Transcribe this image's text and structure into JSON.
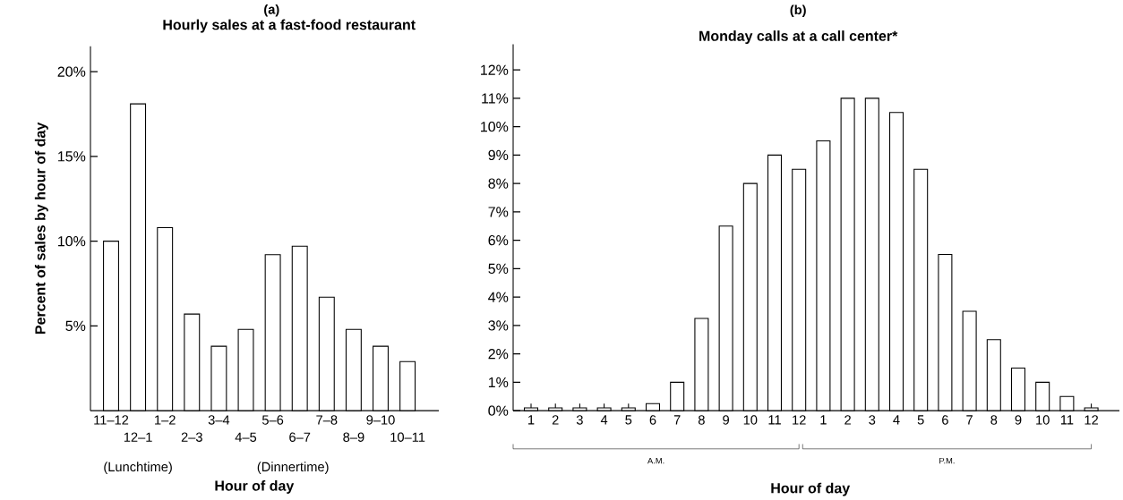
{
  "chart_data": [
    {
      "type": "bar",
      "title": "(a)",
      "subtitle": "Hourly sales at a fast-food restaurant",
      "xlabel": "Hour of day",
      "ylabel": "Percent of sales by hour of day",
      "categories": [
        "11–12",
        "12–1",
        "1–2",
        "2–3",
        "3–4",
        "4–5",
        "5–6",
        "6–7",
        "7–8",
        "8–9",
        "9–10",
        "10–11"
      ],
      "values": [
        10,
        18.1,
        10.8,
        5.7,
        3.8,
        4.8,
        9.2,
        9.7,
        6.7,
        4.8,
        3.8,
        2.9
      ],
      "ylim": [
        0,
        21.5
      ],
      "yticks": [
        {
          "value": 5,
          "label": "5%"
        },
        {
          "value": 10,
          "label": "10%"
        },
        {
          "value": 15,
          "label": "15%"
        },
        {
          "value": 20,
          "label": "20%"
        }
      ],
      "annotations": [
        "(Lunchtime)",
        "(Dinnertime)"
      ]
    },
    {
      "type": "bar",
      "title": "(b)",
      "subtitle": "Monday calls at a call center*",
      "xlabel": "Hour of day",
      "categories": [
        "1",
        "2",
        "3",
        "4",
        "5",
        "6",
        "7",
        "8",
        "9",
        "10",
        "11",
        "12",
        "1",
        "2",
        "3",
        "4",
        "5",
        "6",
        "7",
        "8",
        "9",
        "10",
        "11",
        "12"
      ],
      "values": [
        0.1,
        0.1,
        0.1,
        0.1,
        0.1,
        0.25,
        1,
        3.25,
        6.5,
        8,
        9,
        8.5,
        9.5,
        11,
        11,
        10.5,
        8.5,
        5.5,
        3.5,
        2.5,
        1.5,
        1,
        0.5,
        0.1
      ],
      "ylim": [
        0,
        12.9
      ],
      "yticks": [
        {
          "value": 0,
          "label": "0%"
        },
        {
          "value": 1,
          "label": "1%"
        },
        {
          "value": 2,
          "label": "2%"
        },
        {
          "value": 3,
          "label": "3%"
        },
        {
          "value": 4,
          "label": "4%"
        },
        {
          "value": 5,
          "label": "5%"
        },
        {
          "value": 6,
          "label": "6%"
        },
        {
          "value": 7,
          "label": "7%"
        },
        {
          "value": 8,
          "label": "8%"
        },
        {
          "value": 9,
          "label": "9%"
        },
        {
          "value": 10,
          "label": "10%"
        },
        {
          "value": 11,
          "label": "11%"
        },
        {
          "value": 12,
          "label": "12%"
        }
      ],
      "annotations": [
        "A.M.",
        "P.M."
      ]
    }
  ]
}
